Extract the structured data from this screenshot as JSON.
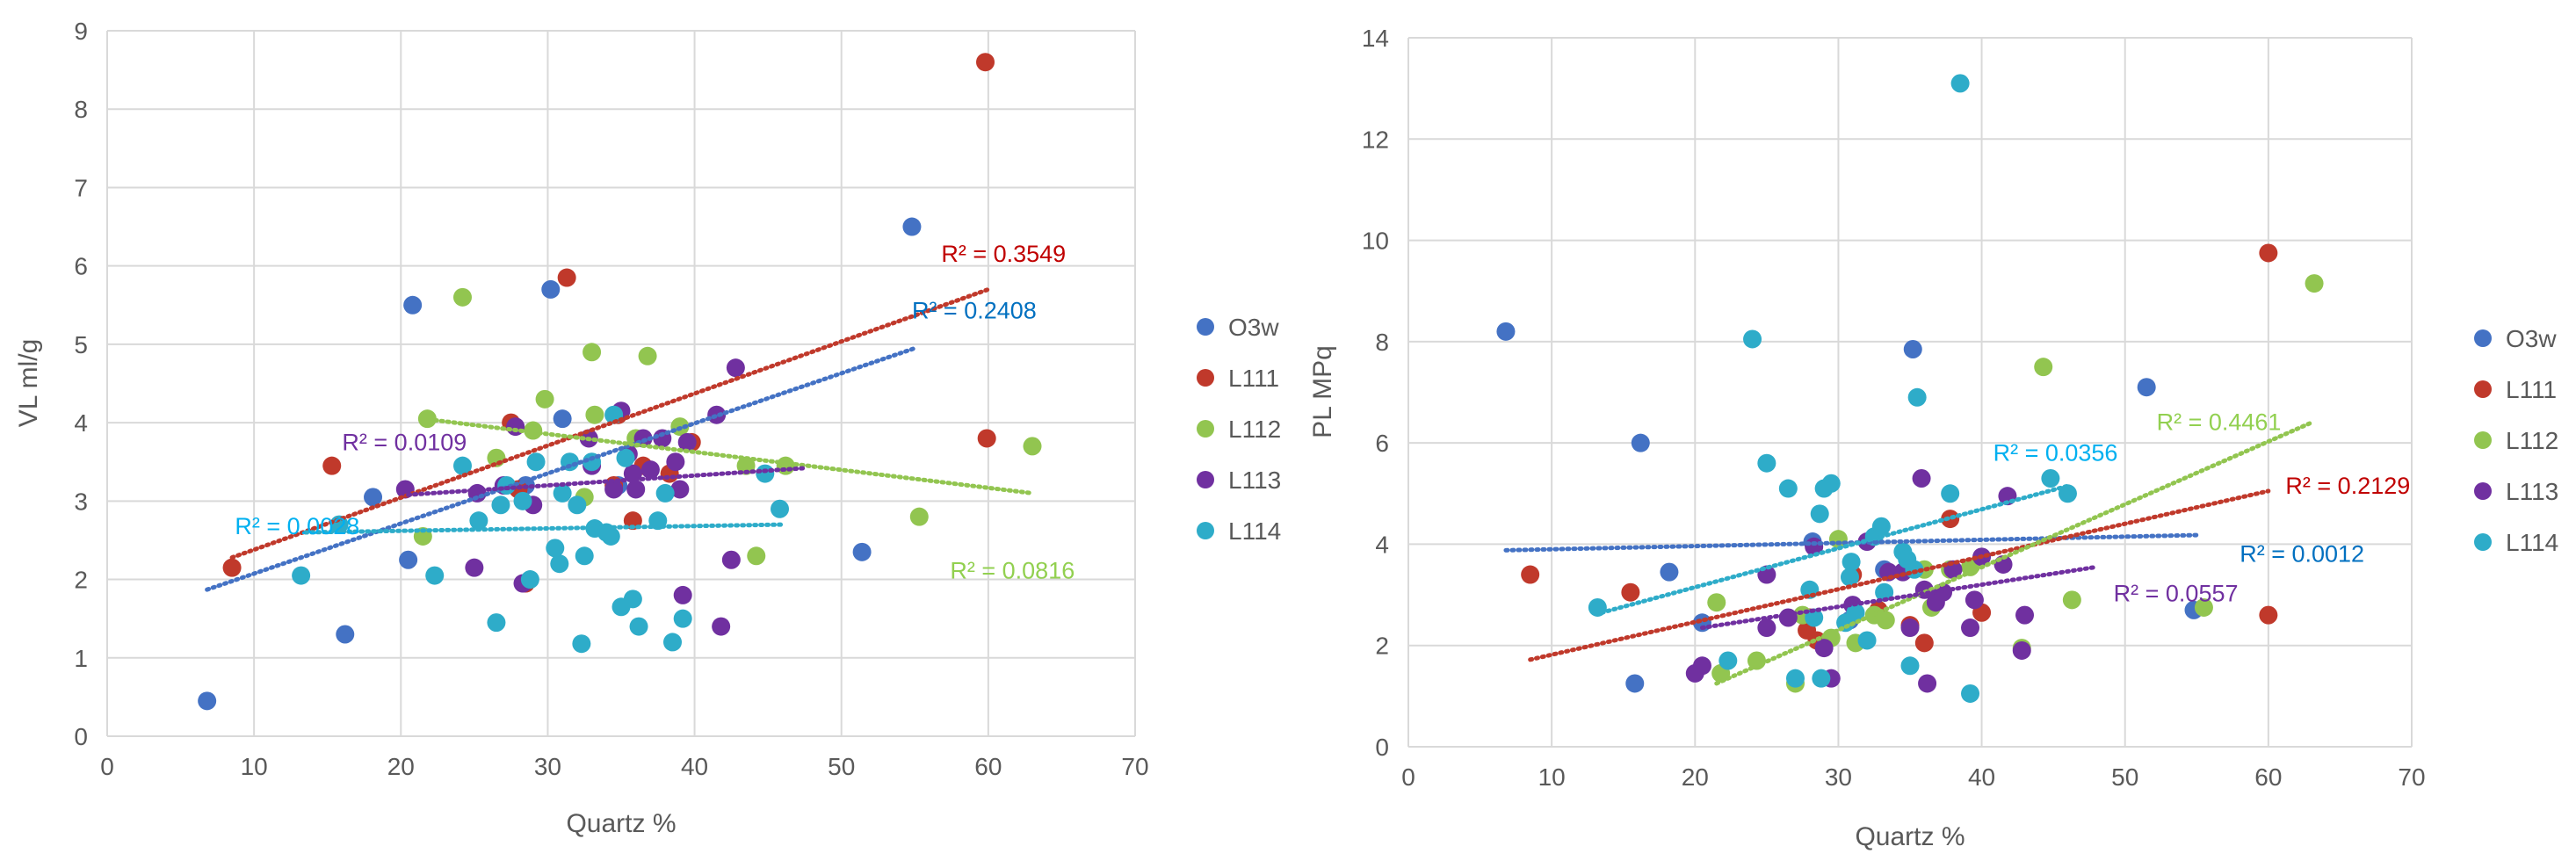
{
  "chart_data": [
    {
      "type": "scatter",
      "xlabel": "Quartz %",
      "ylabel": "VL ml/g",
      "xlim": [
        0,
        70
      ],
      "ylim": [
        0,
        9
      ],
      "xticks": [
        0,
        10,
        20,
        30,
        40,
        50,
        60,
        70
      ],
      "yticks": [
        0,
        1,
        2,
        3,
        4,
        5,
        6,
        7,
        8,
        9
      ],
      "grid": true,
      "legend_position": "right",
      "series": [
        {
          "name": "O3w",
          "color": "#4472C4",
          "points": [
            [
              6.8,
              0.45
            ],
            [
              16.2,
              1.3
            ],
            [
              18.1,
              3.05
            ],
            [
              20.5,
              2.25
            ],
            [
              20.8,
              5.5
            ],
            [
              28.5,
              3.2
            ],
            [
              30.2,
              5.7
            ],
            [
              31,
              4.05
            ],
            [
              34.8,
              3.2
            ],
            [
              51.4,
              2.35
            ],
            [
              54.8,
              6.5
            ]
          ],
          "trend": {
            "x": [
              6.8,
              55
            ],
            "y": [
              1.87,
              4.95
            ]
          },
          "r2": "R² = 0.2408",
          "r2_color": "#0070C0",
          "r2_at": [
            54.8,
            5.33
          ]
        },
        {
          "name": "L111",
          "color": "#C0392B",
          "points": [
            [
              8.5,
              2.15
            ],
            [
              15.3,
              3.45
            ],
            [
              27.5,
              4.0
            ],
            [
              28,
              3.15
            ],
            [
              28.5,
              1.95
            ],
            [
              31.3,
              5.85
            ],
            [
              34.5,
              3.2
            ],
            [
              34.8,
              4.1
            ],
            [
              35.8,
              2.75
            ],
            [
              36.5,
              3.45
            ],
            [
              38.3,
              3.35
            ],
            [
              39.8,
              3.75
            ],
            [
              59.8,
              8.6
            ],
            [
              59.9,
              3.8
            ]
          ],
          "trend": {
            "x": [
              8.5,
              60
            ],
            "y": [
              2.28,
              5.7
            ]
          },
          "r2": "R² = 0.3549",
          "r2_color": "#C00000",
          "r2_at": [
            56.8,
            6.05
          ]
        },
        {
          "name": "L112",
          "color": "#92C550",
          "points": [
            [
              21.5,
              2.55
            ],
            [
              21.8,
              4.05
            ],
            [
              24.2,
              5.6
            ],
            [
              26.5,
              3.55
            ],
            [
              29,
              3.9
            ],
            [
              29.8,
              4.3
            ],
            [
              32.5,
              3.05
            ],
            [
              33,
              4.9
            ],
            [
              33.2,
              4.1
            ],
            [
              36,
              3.8
            ],
            [
              36.8,
              4.85
            ],
            [
              39,
              3.95
            ],
            [
              43.5,
              3.45
            ],
            [
              44.2,
              2.3
            ],
            [
              46.2,
              3.45
            ],
            [
              55.3,
              2.8
            ],
            [
              63,
              3.7
            ]
          ],
          "trend": {
            "x": [
              21.5,
              63
            ],
            "y": [
              4.05,
              3.1
            ]
          },
          "r2": "R² = 0.0816",
          "r2_color": "#92D050",
          "r2_at": [
            57.4,
            2.01
          ]
        },
        {
          "name": "L113",
          "color": "#7030A0",
          "points": [
            [
              20.3,
              3.15
            ],
            [
              25,
              2.15
            ],
            [
              25.2,
              3.1
            ],
            [
              27,
              3.2
            ],
            [
              27.8,
              3.95
            ],
            [
              28.3,
              1.95
            ],
            [
              29,
              2.95
            ],
            [
              32.8,
              3.8
            ],
            [
              33,
              3.45
            ],
            [
              34.5,
              3.15
            ],
            [
              35,
              4.15
            ],
            [
              35.5,
              3.6
            ],
            [
              35.8,
              3.35
            ],
            [
              36,
              3.15
            ],
            [
              36.5,
              3.8
            ],
            [
              37,
              3.4
            ],
            [
              37.8,
              3.8
            ],
            [
              38.7,
              3.5
            ],
            [
              39,
              3.15
            ],
            [
              39.2,
              1.8
            ],
            [
              39.5,
              3.75
            ],
            [
              41.5,
              4.1
            ],
            [
              41.8,
              1.4
            ],
            [
              42.5,
              2.25
            ],
            [
              42.8,
              4.7
            ]
          ],
          "trend": {
            "x": [
              20.5,
              47.5
            ],
            "y": [
              3.08,
              3.42
            ]
          },
          "r2": "R² = 0.0109",
          "r2_color": "#7030A0",
          "r2_at": [
            16,
            3.65
          ]
        },
        {
          "name": "L114",
          "color": "#2EACC9",
          "points": [
            [
              13.2,
              2.05
            ],
            [
              15.8,
              2.7
            ],
            [
              22.3,
              2.05
            ],
            [
              24.2,
              3.45
            ],
            [
              25.3,
              2.75
            ],
            [
              26.5,
              1.45
            ],
            [
              26.8,
              2.95
            ],
            [
              27.2,
              3.2
            ],
            [
              28.3,
              3.0
            ],
            [
              28.8,
              2.0
            ],
            [
              29.2,
              3.5
            ],
            [
              30.5,
              2.4
            ],
            [
              30.8,
              2.2
            ],
            [
              31,
              3.1
            ],
            [
              31.5,
              3.5
            ],
            [
              32,
              2.95
            ],
            [
              32.3,
              1.18
            ],
            [
              32.5,
              2.3
            ],
            [
              33,
              3.5
            ],
            [
              33.2,
              2.65
            ],
            [
              34,
              2.6
            ],
            [
              34.3,
              2.55
            ],
            [
              34.5,
              4.1
            ],
            [
              35,
              1.65
            ],
            [
              35.3,
              3.55
            ],
            [
              35.8,
              1.75
            ],
            [
              36.2,
              1.4
            ],
            [
              37.5,
              2.75
            ],
            [
              38,
              3.1
            ],
            [
              38.5,
              1.2
            ],
            [
              39.2,
              1.5
            ],
            [
              44.8,
              3.35
            ],
            [
              45.8,
              2.9
            ]
          ],
          "trend": {
            "x": [
              13.5,
              46
            ],
            "y": [
              2.6,
              2.7
            ]
          },
          "r2": "R² = 0.0028",
          "r2_color": "#00B0F0",
          "r2_at": [
            8.7,
            2.58
          ]
        }
      ]
    },
    {
      "type": "scatter",
      "xlabel": "Quartz %",
      "ylabel": "PL MPq",
      "xlim": [
        0,
        70
      ],
      "ylim": [
        0,
        14
      ],
      "xticks": [
        0,
        10,
        20,
        30,
        40,
        50,
        60,
        70
      ],
      "yticks": [
        0,
        2,
        4,
        6,
        8,
        10,
        12,
        14
      ],
      "grid": true,
      "legend_position": "right",
      "series": [
        {
          "name": "O3w",
          "color": "#4472C4",
          "points": [
            [
              6.8,
              8.2
            ],
            [
              15.8,
              1.25
            ],
            [
              16.2,
              6.0
            ],
            [
              18.2,
              3.45
            ],
            [
              20.5,
              2.45
            ],
            [
              28.2,
              4.05
            ],
            [
              30.8,
              2.5
            ],
            [
              33.2,
              3.5
            ],
            [
              35.2,
              7.85
            ],
            [
              51.5,
              7.1
            ],
            [
              54.8,
              2.7
            ]
          ],
          "trend": {
            "x": [
              6.8,
              55
            ],
            "y": [
              3.88,
              4.18
            ]
          },
          "r2": "R² = 0.0012",
          "r2_color": "#0070C0",
          "r2_at": [
            58,
            3.65
          ]
        },
        {
          "name": "L111",
          "color": "#C0392B",
          "points": [
            [
              8.5,
              3.4
            ],
            [
              15.5,
              3.05
            ],
            [
              27.8,
              2.3
            ],
            [
              28,
              2.55
            ],
            [
              28.5,
              2.1
            ],
            [
              31,
              3.4
            ],
            [
              32.8,
              2.7
            ],
            [
              35,
              2.4
            ],
            [
              36,
              2.05
            ],
            [
              37.8,
              4.5
            ],
            [
              40,
              2.65
            ],
            [
              60,
              9.75
            ],
            [
              60,
              2.6
            ]
          ],
          "trend": {
            "x": [
              8.5,
              60
            ],
            "y": [
              1.72,
              5.05
            ]
          },
          "r2": "R² = 0.2129",
          "r2_color": "#C00000",
          "r2_at": [
            61.2,
            5.0
          ]
        },
        {
          "name": "L112",
          "color": "#92C550",
          "points": [
            [
              21.5,
              2.85
            ],
            [
              21.8,
              1.45
            ],
            [
              24.3,
              1.7
            ],
            [
              27,
              1.25
            ],
            [
              27.5,
              2.6
            ],
            [
              29.5,
              2.15
            ],
            [
              30,
              4.1
            ],
            [
              31.2,
              2.05
            ],
            [
              32.5,
              2.6
            ],
            [
              33.3,
              2.5
            ],
            [
              36,
              3.5
            ],
            [
              36.5,
              2.75
            ],
            [
              37.8,
              3.5
            ],
            [
              39.2,
              3.55
            ],
            [
              42.8,
              1.95
            ],
            [
              44.3,
              7.5
            ],
            [
              46.3,
              2.9
            ],
            [
              55.5,
              2.75
            ],
            [
              63.2,
              9.15
            ]
          ],
          "trend": {
            "x": [
              21.5,
              63
            ],
            "y": [
              1.25,
              6.4
            ]
          },
          "r2": "R² = 0.4461",
          "r2_color": "#92D050",
          "r2_at": [
            52.2,
            6.25
          ]
        },
        {
          "name": "L113",
          "color": "#7030A0",
          "points": [
            [
              20,
              1.45
            ],
            [
              20.5,
              1.6
            ],
            [
              25,
              2.35
            ],
            [
              25,
              3.4
            ],
            [
              26.5,
              2.55
            ],
            [
              28.3,
              3.95
            ],
            [
              29,
              1.95
            ],
            [
              29.5,
              1.35
            ],
            [
              31,
              2.8
            ],
            [
              32,
              4.05
            ],
            [
              33.5,
              3.45
            ],
            [
              34.5,
              3.45
            ],
            [
              35,
              2.35
            ],
            [
              35.8,
              5.3
            ],
            [
              36,
              3.1
            ],
            [
              36.2,
              1.25
            ],
            [
              36.8,
              2.85
            ],
            [
              37.3,
              3.05
            ],
            [
              38,
              3.5
            ],
            [
              39.2,
              2.35
            ],
            [
              39.5,
              2.9
            ],
            [
              40,
              3.75
            ],
            [
              41.5,
              3.6
            ],
            [
              41.8,
              4.95
            ],
            [
              42.8,
              1.9
            ],
            [
              43,
              2.6
            ]
          ],
          "trend": {
            "x": [
              20.5,
              48
            ],
            "y": [
              2.35,
              3.55
            ]
          },
          "r2": "R² = 0.0557",
          "r2_color": "#7030A0",
          "r2_at": [
            49.2,
            2.87
          ]
        },
        {
          "name": "L114",
          "color": "#2EACC9",
          "points": [
            [
              13.2,
              2.75
            ],
            [
              22.3,
              1.7
            ],
            [
              24,
              8.05
            ],
            [
              25,
              5.6
            ],
            [
              26.5,
              5.1
            ],
            [
              27,
              1.35
            ],
            [
              28,
              3.1
            ],
            [
              28.3,
              2.55
            ],
            [
              28.7,
              4.6
            ],
            [
              28.8,
              1.35
            ],
            [
              29,
              5.1
            ],
            [
              29.5,
              5.2
            ],
            [
              30.5,
              2.45
            ],
            [
              30.8,
              3.35
            ],
            [
              30.9,
              3.65
            ],
            [
              31.2,
              2.65
            ],
            [
              32,
              2.1
            ],
            [
              32.5,
              4.15
            ],
            [
              33,
              4.35
            ],
            [
              33.2,
              3.05
            ],
            [
              34.5,
              3.85
            ],
            [
              34.8,
              3.7
            ],
            [
              35,
              1.6
            ],
            [
              35.3,
              3.5
            ],
            [
              35.5,
              6.9
            ],
            [
              37.8,
              5.0
            ],
            [
              38.5,
              13.1
            ],
            [
              39.2,
              1.05
            ],
            [
              44.8,
              5.3
            ],
            [
              46,
              5.0
            ]
          ],
          "trend": {
            "x": [
              13.5,
              46
            ],
            "y": [
              2.65,
              5.15
            ]
          },
          "r2": "R² = 0.0356",
          "r2_color": "#00B0F0",
          "r2_at": [
            40.8,
            5.65
          ]
        }
      ]
    }
  ]
}
